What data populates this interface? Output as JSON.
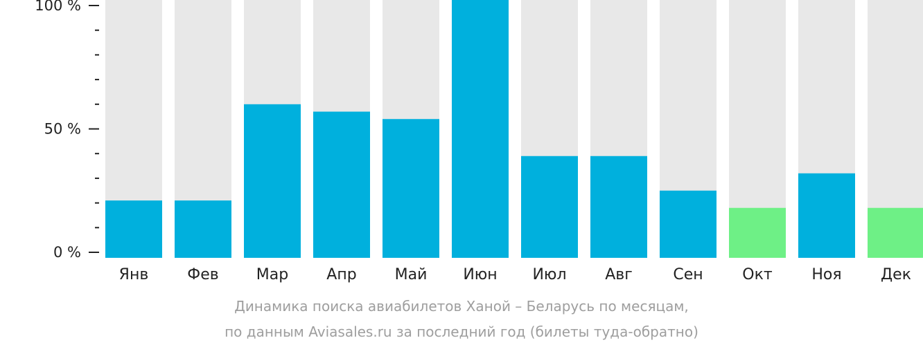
{
  "chart_data": {
    "type": "bar",
    "categories": [
      "Янв",
      "Фев",
      "Мар",
      "Апр",
      "Май",
      "Июн",
      "Июл",
      "Авг",
      "Сен",
      "Окт",
      "Ноя",
      "Дек"
    ],
    "values": [
      21,
      21,
      60,
      57,
      54,
      105,
      39,
      39,
      25,
      18,
      32,
      18
    ],
    "bar_colors": [
      "#00b0dd",
      "#00b0dd",
      "#00b0dd",
      "#00b0dd",
      "#00b0dd",
      "#00b0dd",
      "#00b0dd",
      "#00b0dd",
      "#00b0dd",
      "#6ef086",
      "#00b0dd",
      "#6ef086"
    ],
    "background_bar_color": "#e8e8e8",
    "yticks": [
      0,
      50,
      100
    ],
    "ytick_labels": [
      "0 %",
      "50 %",
      "100 %"
    ],
    "ylim": [
      0,
      105
    ],
    "grid": false,
    "legend": "none"
  },
  "caption": {
    "line1": "Динамика поиска авиабилетов Ханой – Беларусь по месяцам,",
    "line2": "по данным Aviasales.ru за последний год (билеты туда-обратно)"
  }
}
